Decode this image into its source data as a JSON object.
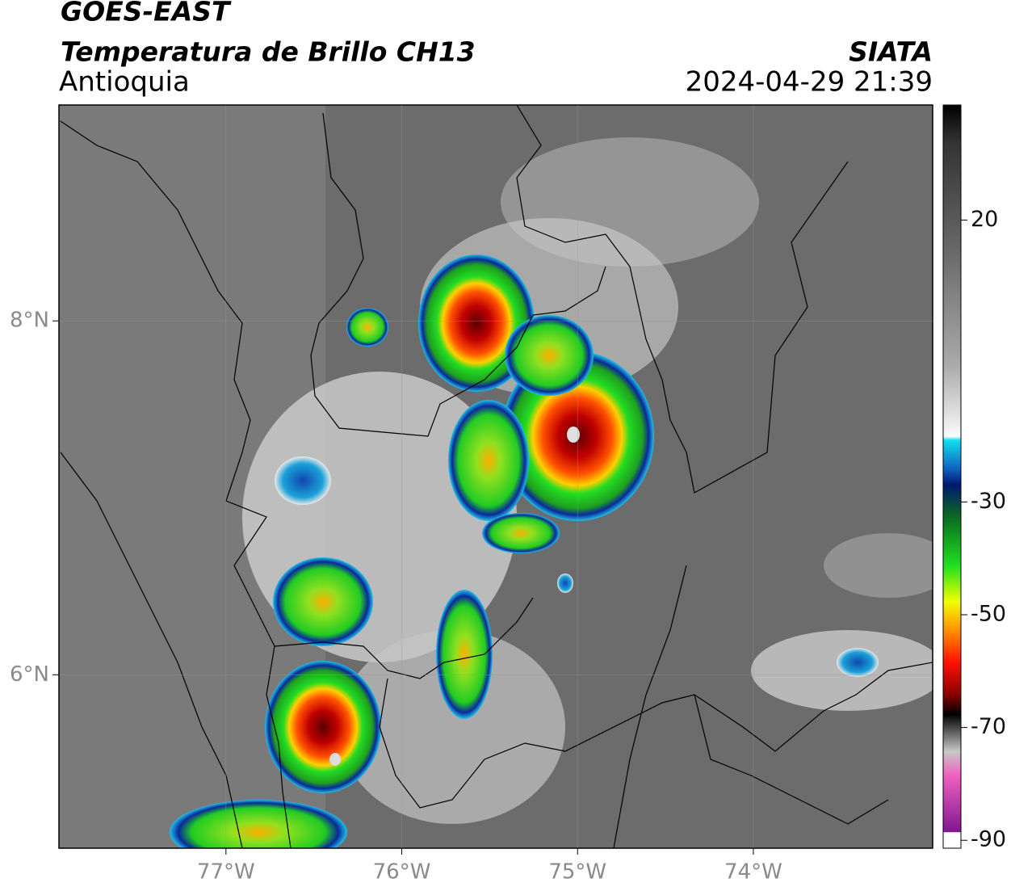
{
  "header": {
    "satellite": "GOES-EAST",
    "product": "Temperatura de Brillo CH13",
    "region": "Antioquia",
    "source": "SIATA",
    "datetime": "2024-04-29 21:39"
  },
  "map": {
    "xlim": [
      -77.95,
      -72.98
    ],
    "ylim": [
      5.02,
      9.22
    ],
    "xticks": [
      {
        "value": -77,
        "label": "77°W"
      },
      {
        "value": -76,
        "label": "76°W"
      },
      {
        "value": -75,
        "label": "75°W"
      },
      {
        "value": -74,
        "label": "74°W"
      }
    ],
    "yticks": [
      {
        "value": 6,
        "label": "6°N"
      },
      {
        "value": 8,
        "label": "8°N"
      }
    ]
  },
  "colorbar": {
    "lim": [
      -91.4,
      40.4
    ],
    "ticks": [
      20,
      -30,
      -50,
      -70,
      -90
    ]
  }
}
